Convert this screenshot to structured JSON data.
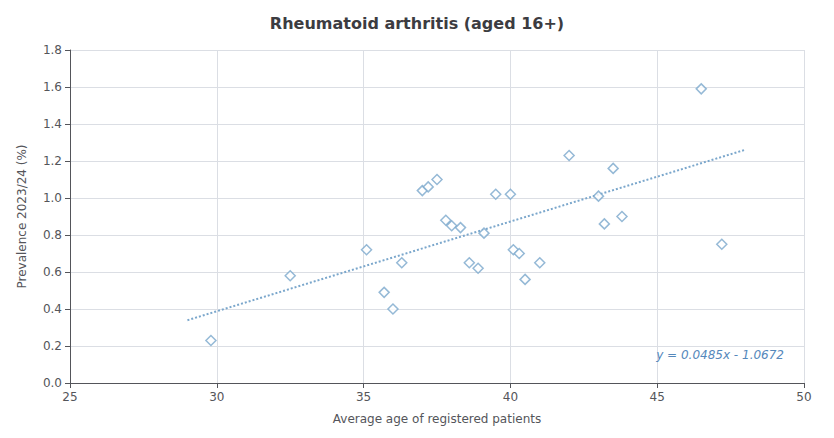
{
  "chart_data": {
    "type": "scatter",
    "title": "Rheumatoid arthritis (aged 16+)",
    "x_label": "Average age of registered patients",
    "y_label": "Prevalence 2023/24 (%)",
    "xlim": [
      25,
      50
    ],
    "ylim": [
      0.0,
      1.8
    ],
    "xticks": [
      25,
      30,
      35,
      40,
      45,
      50
    ],
    "yticks": [
      {
        "value": 0.0,
        "label": "0.0"
      },
      0.2,
      0.4,
      0.6,
      0.8,
      {
        "value": 1.0,
        "label": "1.0"
      },
      1.2,
      1.4,
      1.6,
      1.8
    ],
    "grid": true,
    "series": [
      {
        "type": "scatter",
        "marker": "diamond",
        "color": "#7ba7cc",
        "x": [
          29.8,
          32.5,
          35.1,
          35.7,
          36.0,
          36.3,
          37.0,
          37.2,
          37.5,
          37.8,
          38.0,
          38.3,
          38.6,
          38.9,
          39.1,
          39.5,
          40.0,
          40.1,
          40.3,
          40.5,
          41.0,
          42.0,
          43.0,
          43.2,
          43.5,
          43.8,
          46.5,
          47.2
        ],
        "values": [
          0.23,
          0.58,
          0.72,
          0.49,
          0.4,
          0.65,
          1.04,
          1.06,
          1.1,
          0.88,
          0.85,
          0.84,
          0.65,
          0.62,
          0.81,
          1.02,
          1.02,
          0.72,
          0.7,
          0.56,
          0.65,
          1.23,
          1.01,
          0.86,
          1.16,
          0.9,
          1.59,
          0.75
        ]
      },
      {
        "type": "line",
        "line_style": "dotted",
        "color": "#7ba7cc",
        "x": [
          29.0,
          48.0
        ],
        "values": [
          0.3393,
          1.2608
        ]
      }
    ],
    "annotations": [
      {
        "text": "y = 0.0485x - 1.0672",
        "color": "#5588bb"
      }
    ]
  }
}
